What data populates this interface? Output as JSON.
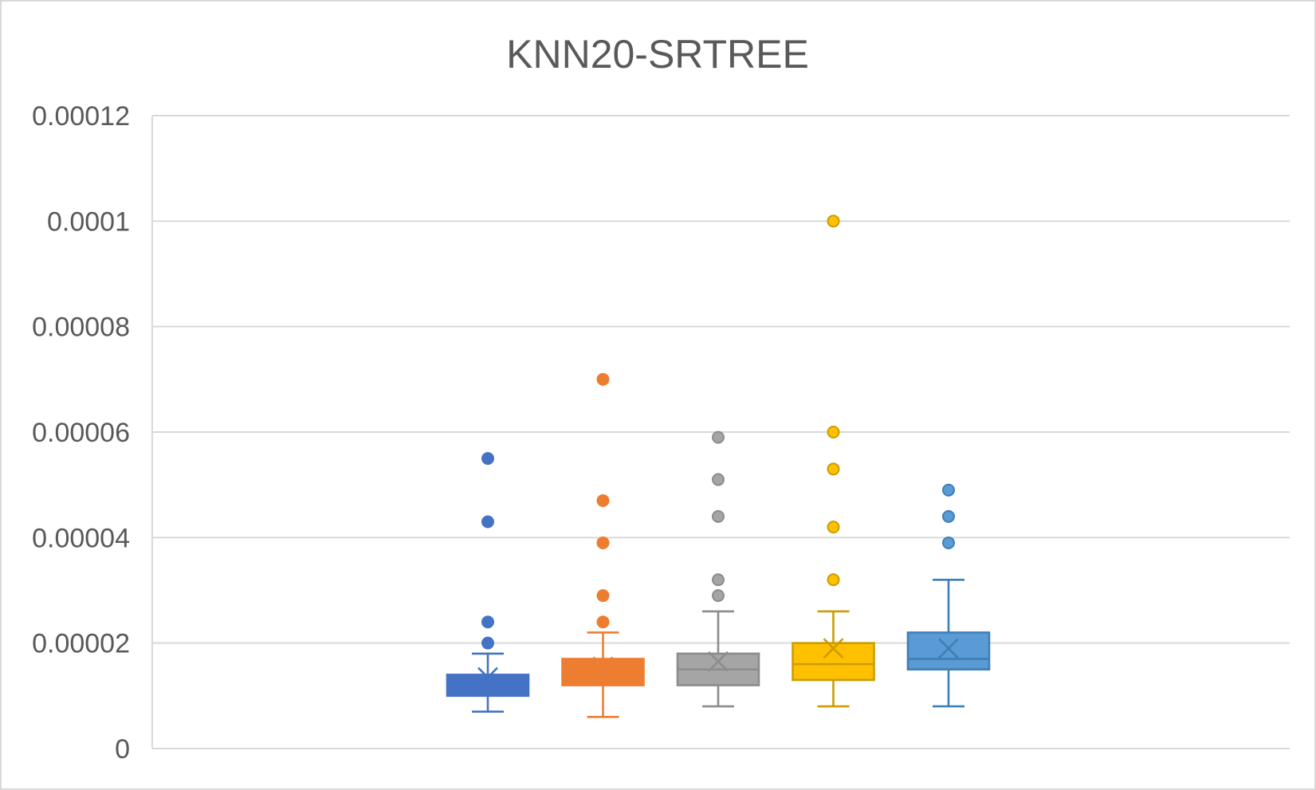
{
  "chart_data": {
    "type": "box",
    "title": "KNN20-SRTREE",
    "xlabel": "",
    "ylabel": "",
    "ylim": [
      0,
      0.00012
    ],
    "y_ticks": [
      0,
      2e-05,
      4e-05,
      6e-05,
      8e-05,
      0.0001,
      0.00012
    ],
    "y_tick_labels": [
      "0",
      "0.00002",
      "0.00004",
      "0.00006",
      "0.00008",
      "0.0001",
      "0.00012"
    ],
    "grid": true,
    "legend": "none",
    "series": [
      {
        "color": "#4472c4",
        "fill": "#4472c4",
        "whisker_low": 7e-06,
        "q1": 1e-05,
        "median": 1.2e-05,
        "q3": 1.4e-05,
        "whisker_high": 1.8e-05,
        "mean": 1.35e-05,
        "outliers": [
          2e-05,
          2.4e-05,
          4.3e-05,
          5.5e-05
        ]
      },
      {
        "color": "#ed7d31",
        "fill": "#ed7d31",
        "whisker_low": 6e-06,
        "q1": 1.2e-05,
        "median": 1.3e-05,
        "q3": 1.7e-05,
        "whisker_high": 2.2e-05,
        "mean": 1.55e-05,
        "outliers": [
          2.4e-05,
          2.9e-05,
          3.9e-05,
          4.7e-05,
          7e-05
        ]
      },
      {
        "color": "#8c8c8c",
        "fill": "#a5a5a5",
        "whisker_low": 8e-06,
        "q1": 1.2e-05,
        "median": 1.5e-05,
        "q3": 1.8e-05,
        "whisker_high": 2.6e-05,
        "mean": 1.65e-05,
        "outliers": [
          2.9e-05,
          3.2e-05,
          4.4e-05,
          5.1e-05,
          5.9e-05
        ]
      },
      {
        "color": "#cc9c00",
        "fill": "#ffc000",
        "whisker_low": 8e-06,
        "q1": 1.3e-05,
        "median": 1.6e-05,
        "q3": 2e-05,
        "whisker_high": 2.6e-05,
        "mean": 1.9e-05,
        "outliers": [
          3.2e-05,
          4.2e-05,
          5.3e-05,
          6e-05,
          0.0001
        ]
      },
      {
        "color": "#3f7fb8",
        "fill": "#5b9bd5",
        "whisker_low": 8e-06,
        "q1": 1.5e-05,
        "median": 1.7e-05,
        "q3": 2.2e-05,
        "whisker_high": 3.2e-05,
        "mean": 1.9e-05,
        "outliers": [
          3.9e-05,
          4.4e-05,
          4.9e-05
        ]
      }
    ]
  }
}
